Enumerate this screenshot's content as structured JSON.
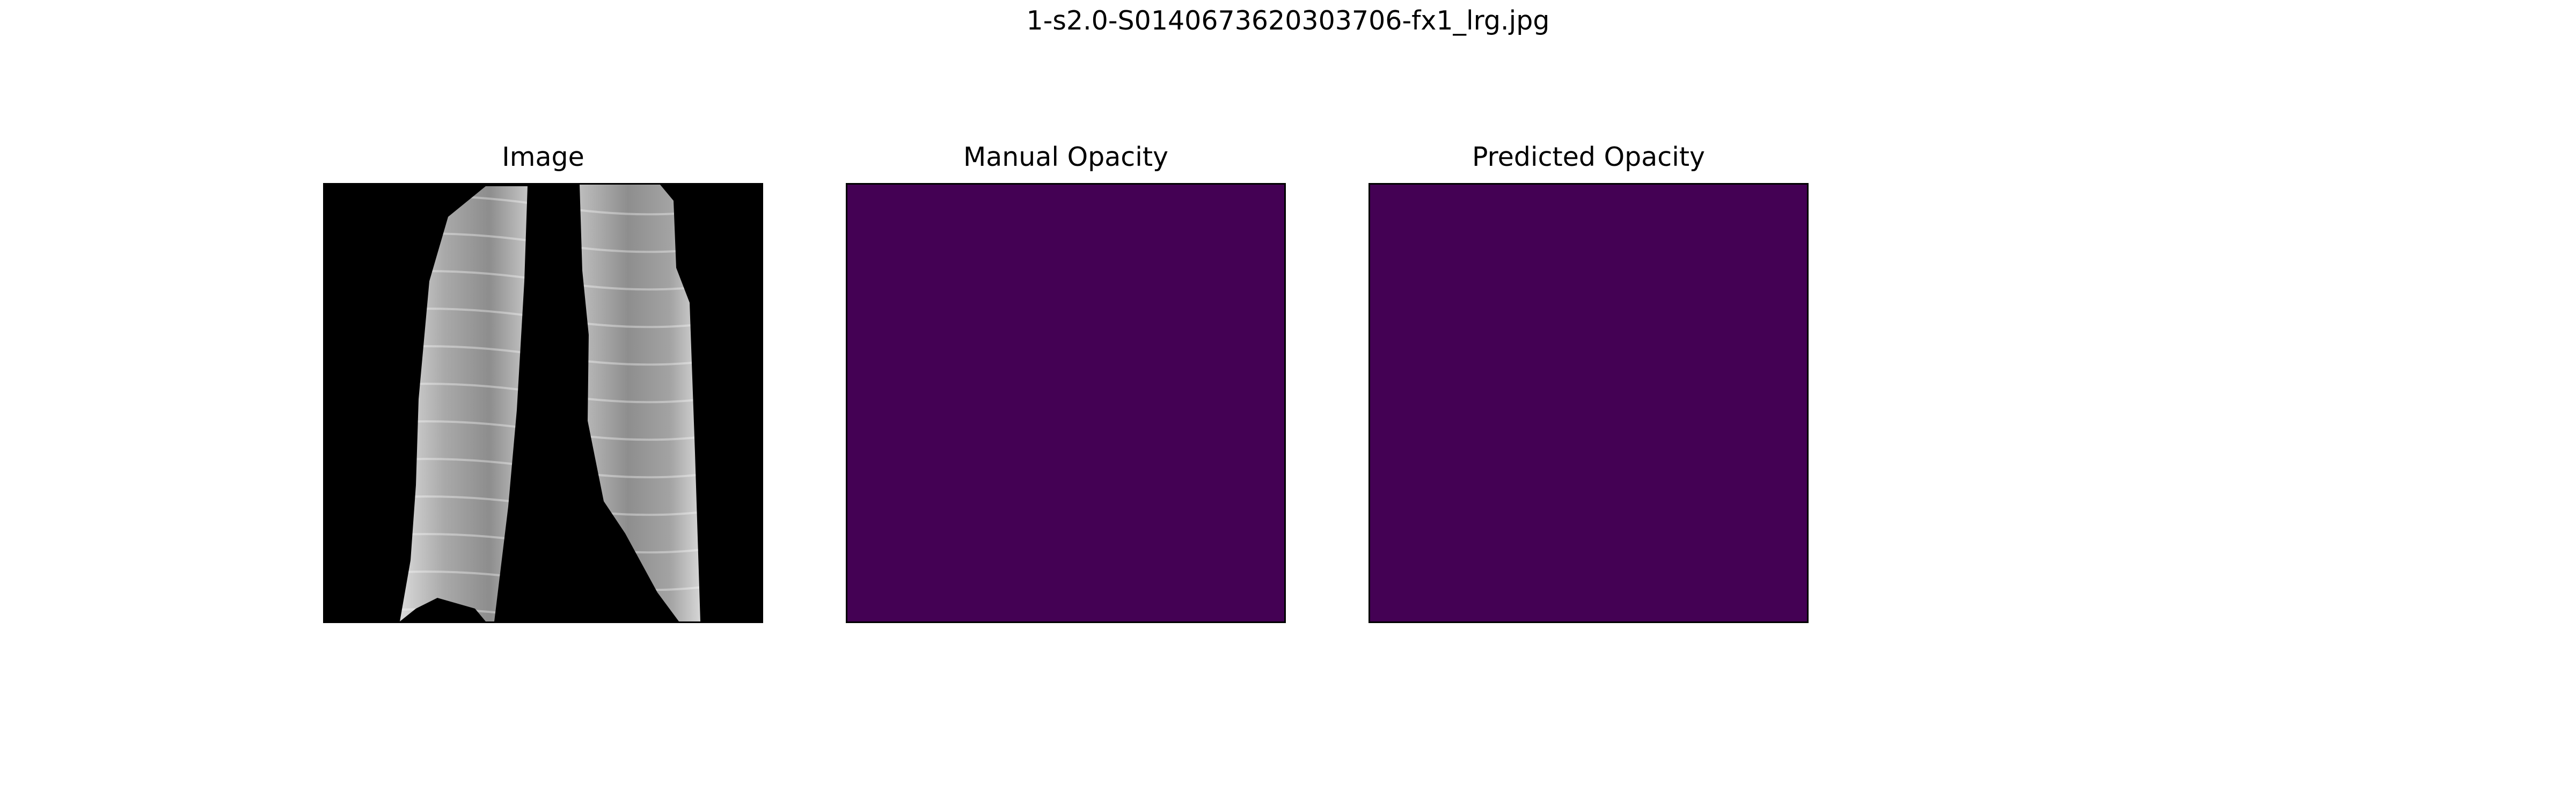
{
  "figure": {
    "title": "1-s2.0-S0140673620303706-fx1_lrg.jpg"
  },
  "panels": [
    {
      "title": "Image"
    },
    {
      "title": "Manual Opacity"
    },
    {
      "title": "Predicted Opacity"
    }
  ],
  "colors": {
    "background": "#ffffff",
    "image_background": "#000000",
    "mask_fill": "#440154",
    "frame": "#000000"
  }
}
